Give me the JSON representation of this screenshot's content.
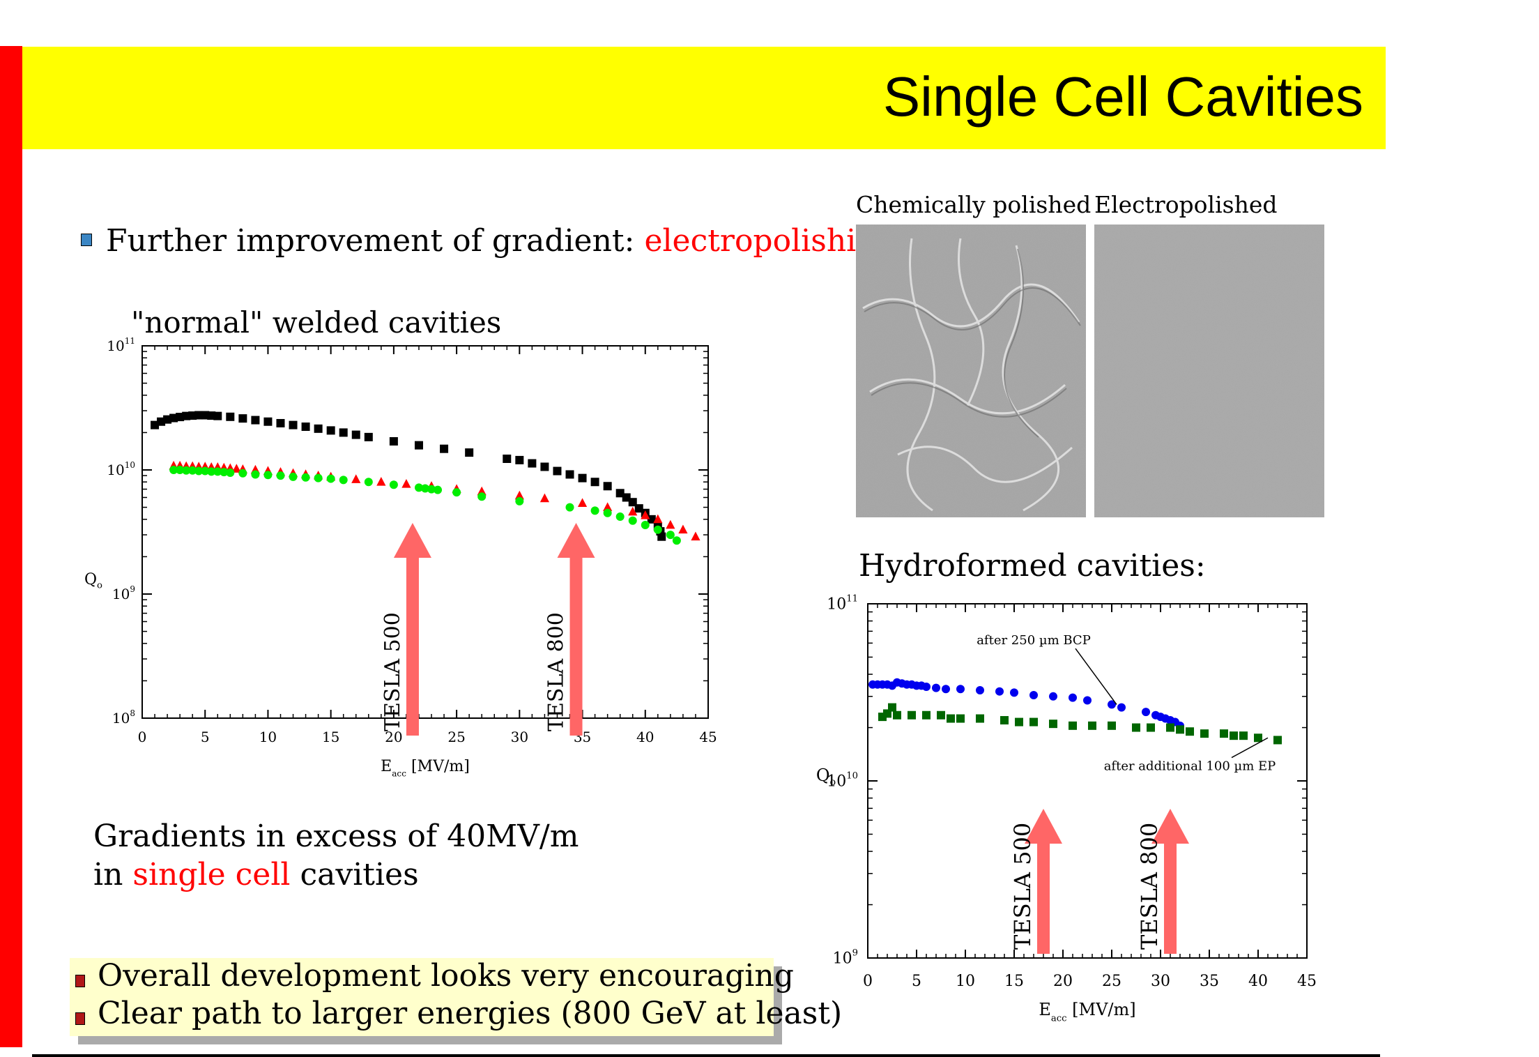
{
  "slide": {
    "title": "Single Cell Cavities",
    "colors": {
      "red_bar": "#ff0000",
      "title_band": "#ffff00",
      "highlight": "#ff0000",
      "note_box": "#ffffcc"
    }
  },
  "intro": {
    "text": "Further improvement of gradient: ",
    "highlight": "electropolishing",
    "bullet_icon": "square-bullet-icon"
  },
  "photos": {
    "chem_label": "Chemically polished",
    "ep_label": "Electropolished"
  },
  "summary": {
    "line1": "Gradients in excess of 40MV/m",
    "line2_pre": "in ",
    "line2_highlight": "single cell",
    "line2_post": " cavities"
  },
  "notes": [
    "Overall development looks very encouraging",
    "Clear path to larger energies (800 GeV at least)"
  ],
  "chart_data": [
    {
      "type": "scatter",
      "title": "\"normal\" welded cavities",
      "xlabel": "E",
      "xlabel_sub": "acc",
      "xlabel_unit": "[MV/m]",
      "ylabel": "Q",
      "ylabel_sub": "o",
      "xlim": [
        0,
        45
      ],
      "ylim_log10": [
        8,
        11
      ],
      "x_ticks": [
        "0",
        "5",
        "10",
        "15",
        "20",
        "25",
        "30",
        "35",
        "40",
        "45"
      ],
      "y_ticks": [
        {
          "base": "10",
          "exp": "8",
          "v": 8
        },
        {
          "base": "10",
          "exp": "9",
          "v": 9
        },
        {
          "base": "10",
          "exp": "10",
          "v": 10
        },
        {
          "base": "10",
          "exp": "11",
          "v": 11
        }
      ],
      "series": [
        {
          "name": "black squares",
          "color": "#000000",
          "marker": "square",
          "x": [
            1,
            1.5,
            2,
            2.5,
            3,
            3.5,
            4,
            4.5,
            5,
            5.5,
            6,
            7,
            8,
            9,
            10,
            11,
            12,
            13,
            14,
            15,
            16,
            17,
            18,
            20,
            22,
            24,
            26,
            29,
            30,
            31,
            32,
            33,
            34,
            35,
            36,
            37,
            38,
            38.5,
            39,
            39.5,
            40,
            40.5,
            41,
            41.2,
            41.3
          ],
          "y": [
            23000000000.0,
            24500000000.0,
            25500000000.0,
            26200000000.0,
            26700000000.0,
            27200000000.0,
            27400000000.0,
            27600000000.0,
            27600000000.0,
            27400000000.0,
            27200000000.0,
            26800000000.0,
            26000000000.0,
            25200000000.0,
            24500000000.0,
            23800000000.0,
            23000000000.0,
            22300000000.0,
            21500000000.0,
            20800000000.0,
            20000000000.0,
            19200000000.0,
            18400000000.0,
            17000000000.0,
            15800000000.0,
            14800000000.0,
            13800000000.0,
            12300000000.0,
            12000000000.0,
            11300000000.0,
            10600000000.0,
            9800000000.0,
            9200000000.0,
            8600000000.0,
            8000000000.0,
            7400000000.0,
            6500000000.0,
            6000000000.0,
            5500000000.0,
            4900000000.0,
            4500000000.0,
            4000000000.0,
            3500000000.0,
            3200000000.0,
            2900000000.0
          ]
        },
        {
          "name": "red triangles",
          "color": "#ff0000",
          "marker": "triangle",
          "x": [
            2.5,
            3,
            3.5,
            4,
            4.5,
            5,
            5.5,
            6,
            6.5,
            7,
            7.5,
            8,
            9,
            10,
            11,
            12,
            13,
            14,
            15,
            17,
            19,
            21,
            23,
            25,
            27,
            30,
            32,
            35,
            37,
            39,
            40,
            41,
            42,
            43,
            44
          ],
          "y": [
            10800000000.0,
            10800000000.0,
            10700000000.0,
            10700000000.0,
            10600000000.0,
            10600000000.0,
            10500000000.0,
            10500000000.0,
            10400000000.0,
            10300000000.0,
            10200000000.0,
            10100000000.0,
            10000000000.0,
            9800000000.0,
            9600000000.0,
            9400000000.0,
            9200000000.0,
            9000000000.0,
            8800000000.0,
            8400000000.0,
            8000000000.0,
            7700000000.0,
            7400000000.0,
            7000000000.0,
            6700000000.0,
            6200000000.0,
            5900000000.0,
            5400000000.0,
            5000000000.0,
            4600000000.0,
            4300000000.0,
            4000000000.0,
            3600000000.0,
            3300000000.0,
            2900000000.0
          ]
        },
        {
          "name": "green circles",
          "color": "#00ee00",
          "marker": "circle",
          "x": [
            2.5,
            3,
            3.5,
            4,
            4.5,
            5,
            5.5,
            6,
            6.5,
            7,
            8,
            9,
            10,
            11,
            12,
            13,
            14,
            15,
            16,
            18,
            20,
            22,
            22.5,
            23,
            23.5,
            25,
            27,
            30,
            34,
            36,
            37,
            38,
            39,
            40,
            41,
            42,
            42.5
          ],
          "y": [
            10000000000.0,
            10000000000.0,
            9900000000.0,
            9900000000.0,
            9800000000.0,
            9800000000.0,
            9700000000.0,
            9700000000.0,
            9600000000.0,
            9500000000.0,
            9400000000.0,
            9200000000.0,
            9100000000.0,
            9000000000.0,
            8800000000.0,
            8700000000.0,
            8600000000.0,
            8500000000.0,
            8300000000.0,
            8000000000.0,
            7600000000.0,
            7200000000.0,
            7100000000.0,
            7000000000.0,
            6900000000.0,
            6600000000.0,
            6100000000.0,
            5600000000.0,
            5000000000.0,
            4700000000.0,
            4500000000.0,
            4200000000.0,
            3900000000.0,
            3600000000.0,
            3300000000.0,
            3000000000.0,
            2700000000.0
          ]
        }
      ],
      "annotations": [
        {
          "label": "TESLA 500",
          "x": 21.5
        },
        {
          "label": "TESLA 800",
          "x": 34.5
        }
      ]
    },
    {
      "type": "scatter",
      "title": "Hydroformed cavities:",
      "xlabel": "E",
      "xlabel_sub": "acc",
      "xlabel_unit": "[MV/m]",
      "ylabel": "Q",
      "ylabel_sub": "o",
      "xlim": [
        0,
        45
      ],
      "ylim_log10": [
        9,
        11
      ],
      "x_ticks": [
        "0",
        "5",
        "10",
        "15",
        "20",
        "25",
        "30",
        "35",
        "40",
        "45"
      ],
      "y_ticks": [
        {
          "base": "10",
          "exp": "9",
          "v": 9
        },
        {
          "base": "10",
          "exp": "10",
          "v": 10
        },
        {
          "base": "10",
          "exp": "11",
          "v": 11
        }
      ],
      "series": [
        {
          "name": "after 250 µm BCP",
          "color": "#0000ee",
          "marker": "circle",
          "x": [
            0.5,
            1,
            1.5,
            2,
            2.5,
            3,
            3.5,
            4,
            4.5,
            5,
            5.5,
            6,
            7,
            8,
            9.5,
            11.5,
            13.5,
            15,
            17,
            19,
            21,
            22.5,
            25,
            26,
            28.5,
            29.5,
            30,
            30.5,
            31,
            31.5,
            32
          ],
          "y": [
            35000000000.0,
            35000000000.0,
            35000000000.0,
            35000000000.0,
            34500000000.0,
            36000000000.0,
            35500000000.0,
            35000000000.0,
            35000000000.0,
            34500000000.0,
            34500000000.0,
            34000000000.0,
            33500000000.0,
            33000000000.0,
            33000000000.0,
            32500000000.0,
            32000000000.0,
            31500000000.0,
            30500000000.0,
            30000000000.0,
            29500000000.0,
            28500000000.0,
            27000000000.0,
            26000000000.0,
            24500000000.0,
            23500000000.0,
            23000000000.0,
            22500000000.0,
            22000000000.0,
            21500000000.0,
            20500000000.0
          ]
        },
        {
          "name": "after additional 100 µm EP",
          "color": "#006600",
          "marker": "square",
          "x": [
            1.5,
            2,
            2.5,
            3,
            4.5,
            6,
            7.5,
            8.5,
            9.5,
            11.5,
            14,
            15.5,
            17,
            19,
            21,
            23,
            25,
            27.5,
            29,
            31,
            32,
            33,
            34.5,
            36.5,
            37.5,
            38.5,
            40,
            42
          ],
          "y": [
            23000000000.0,
            24000000000.0,
            26000000000.0,
            23500000000.0,
            23500000000.0,
            23500000000.0,
            23500000000.0,
            22500000000.0,
            22500000000.0,
            22500000000.0,
            22000000000.0,
            21500000000.0,
            21500000000.0,
            21000000000.0,
            20500000000.0,
            20500000000.0,
            20500000000.0,
            20000000000.0,
            20000000000.0,
            20000000000.0,
            19500000000.0,
            19000000000.0,
            18500000000.0,
            18500000000.0,
            18000000000.0,
            18000000000.0,
            17500000000.0,
            17000000000.0
          ]
        }
      ],
      "annotations": [
        {
          "label": "after 250 µm BCP",
          "x": 17,
          "y": 59000000000.0,
          "arrow_to_x": 25.5,
          "arrow_to_y": 27000000000.0
        },
        {
          "label": "after additional 100 µm EP",
          "x": 33,
          "y": 11500000000.0,
          "arrow_to_x": 41,
          "arrow_to_y": 17500000000.0
        },
        {
          "label": "TESLA 500",
          "x": 18
        },
        {
          "label": "TESLA 800",
          "x": 31
        }
      ]
    }
  ]
}
